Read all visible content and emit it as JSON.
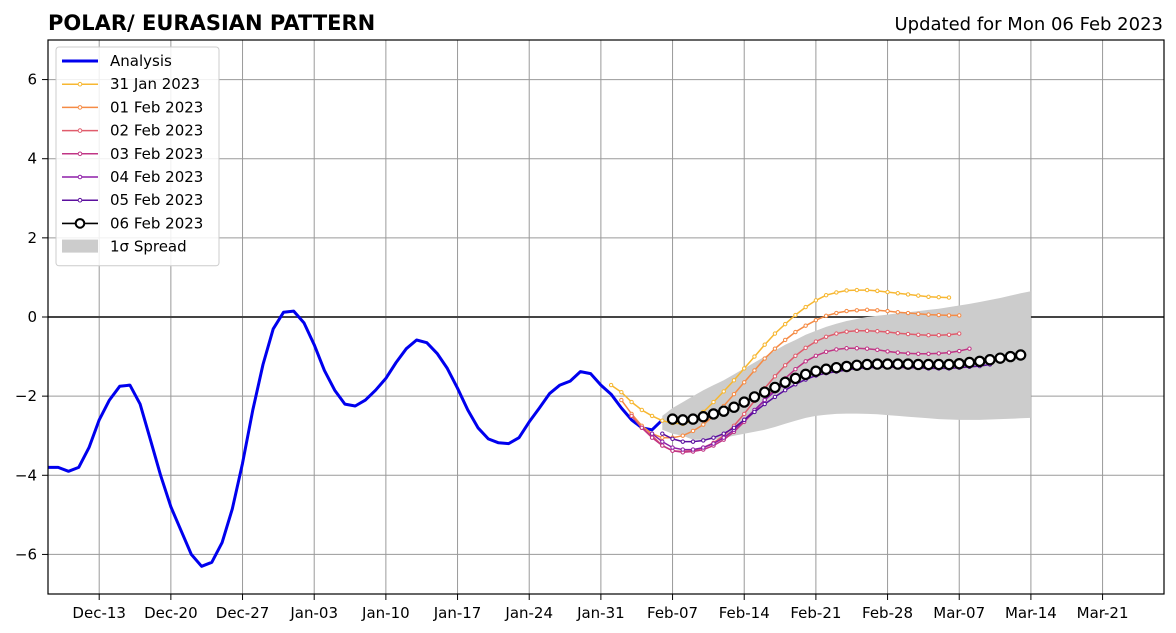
{
  "chart_data": {
    "type": "line",
    "title": "POLAR/ EURASIAN  PATTERN",
    "subtitle": "Updated for Mon 06 Feb 2023",
    "xlabel": "",
    "ylabel": "",
    "x_unit": "days",
    "x_ticks": [
      {
        "label": "Dec-13",
        "x": "2022-12-13"
      },
      {
        "label": "Dec-20",
        "x": "2022-12-20"
      },
      {
        "label": "Dec-27",
        "x": "2022-12-27"
      },
      {
        "label": "Jan-03",
        "x": "2023-01-03"
      },
      {
        "label": "Jan-10",
        "x": "2023-01-10"
      },
      {
        "label": "Jan-17",
        "x": "2023-01-17"
      },
      {
        "label": "Jan-24",
        "x": "2023-01-24"
      },
      {
        "label": "Jan-31",
        "x": "2023-01-31"
      },
      {
        "label": "Feb-07",
        "x": "2023-02-07"
      },
      {
        "label": "Feb-14",
        "x": "2023-02-14"
      },
      {
        "label": "Feb-21",
        "x": "2023-02-21"
      },
      {
        "label": "Feb-28",
        "x": "2023-02-28"
      },
      {
        "label": "Mar-07",
        "x": "2023-03-07"
      },
      {
        "label": "Mar-14",
        "x": "2023-03-14"
      },
      {
        "label": "Mar-21",
        "x": "2023-03-21"
      }
    ],
    "xlim": [
      "2022-12-08",
      "2023-03-27"
    ],
    "ylim": [
      -7,
      7
    ],
    "y_ticks": [
      {
        "label": "−6",
        "v": -6
      },
      {
        "label": "−4",
        "v": -4
      },
      {
        "label": "−2",
        "v": -2
      },
      {
        "label": "0",
        "v": 0
      },
      {
        "label": "2",
        "v": 2
      },
      {
        "label": "4",
        "v": 4
      },
      {
        "label": "6",
        "v": 6
      }
    ],
    "grid": true,
    "legend_position": "top-left",
    "series": [
      {
        "name": "Analysis",
        "color": "#0000ee",
        "style": "thick-line",
        "start": "2022-12-08",
        "values": [
          -3.8,
          -3.8,
          -3.9,
          -3.8,
          -3.3,
          -2.6,
          -2.1,
          -1.75,
          -1.72,
          -2.2,
          -3.1,
          -4.0,
          -4.8,
          -5.4,
          -6.0,
          -6.3,
          -6.2,
          -5.7,
          -4.85,
          -3.7,
          -2.35,
          -1.2,
          -0.3,
          0.12,
          0.15,
          -0.15,
          -0.7,
          -1.35,
          -1.85,
          -2.2,
          -2.25,
          -2.1,
          -1.85,
          -1.55,
          -1.15,
          -0.8,
          -0.58,
          -0.65,
          -0.92,
          -1.3,
          -1.8,
          -2.35,
          -2.8,
          -3.08,
          -3.18,
          -3.2,
          -3.05,
          -2.65,
          -2.3,
          -1.93,
          -1.72,
          -1.62,
          -1.38,
          -1.43,
          -1.72,
          -1.95,
          -2.3,
          -2.6,
          -2.8,
          -2.85,
          -2.6
        ]
      },
      {
        "name": "31 Jan 2023",
        "color": "#f7b731",
        "start": "2023-02-01",
        "values": [
          -1.72,
          -1.9,
          -2.15,
          -2.35,
          -2.5,
          -2.62,
          -2.68,
          -2.7,
          -2.62,
          -2.4,
          -2.15,
          -1.88,
          -1.6,
          -1.3,
          -1.0,
          -0.7,
          -0.42,
          -0.18,
          0.05,
          0.25,
          0.42,
          0.55,
          0.62,
          0.67,
          0.68,
          0.68,
          0.66,
          0.63,
          0.6,
          0.57,
          0.54,
          0.51,
          0.5,
          0.49
        ]
      },
      {
        "name": "01 Feb 2023",
        "color": "#f58b45",
        "start": "2023-02-02",
        "values": [
          -2.1,
          -2.45,
          -2.75,
          -2.95,
          -3.05,
          -3.05,
          -3.0,
          -2.88,
          -2.72,
          -2.5,
          -2.25,
          -1.95,
          -1.65,
          -1.35,
          -1.05,
          -0.8,
          -0.58,
          -0.38,
          -0.22,
          -0.08,
          0.03,
          0.1,
          0.15,
          0.17,
          0.18,
          0.17,
          0.15,
          0.12,
          0.1,
          0.08,
          0.06,
          0.05,
          0.04,
          0.04
        ]
      },
      {
        "name": "02 Feb 2023",
        "color": "#e05c6c",
        "start": "2023-02-03",
        "values": [
          -2.5,
          -2.8,
          -3.0,
          -3.25,
          -3.38,
          -3.4,
          -3.38,
          -3.3,
          -3.18,
          -3.0,
          -2.75,
          -2.45,
          -2.12,
          -1.8,
          -1.5,
          -1.22,
          -0.98,
          -0.78,
          -0.62,
          -0.5,
          -0.42,
          -0.37,
          -0.35,
          -0.35,
          -0.36,
          -0.38,
          -0.41,
          -0.43,
          -0.45,
          -0.46,
          -0.46,
          -0.45,
          -0.42
        ]
      },
      {
        "name": "03 Feb 2023",
        "color": "#c03585",
        "start": "2023-02-04",
        "values": [
          -2.8,
          -3.05,
          -3.25,
          -3.38,
          -3.42,
          -3.4,
          -3.35,
          -3.25,
          -3.1,
          -2.9,
          -2.65,
          -2.38,
          -2.1,
          -1.82,
          -1.55,
          -1.32,
          -1.12,
          -0.98,
          -0.88,
          -0.82,
          -0.79,
          -0.79,
          -0.8,
          -0.83,
          -0.87,
          -0.9,
          -0.92,
          -0.93,
          -0.93,
          -0.92,
          -0.9,
          -0.86,
          -0.8
        ]
      },
      {
        "name": "04 Feb 2023",
        "color": "#8e1fa8",
        "start": "2023-02-05",
        "values": [
          -2.95,
          -3.15,
          -3.3,
          -3.35,
          -3.35,
          -3.3,
          -3.2,
          -3.05,
          -2.85,
          -2.6,
          -2.35,
          -2.1,
          -1.88,
          -1.68,
          -1.52,
          -1.42,
          -1.35,
          -1.3,
          -1.27,
          -1.25,
          -1.24,
          -1.24,
          -1.25,
          -1.26,
          -1.27,
          -1.28,
          -1.28,
          -1.27,
          -1.25,
          -1.22,
          -1.2,
          -1.18,
          -1.15
        ]
      },
      {
        "name": "05 Feb 2023",
        "color": "#5b0f9e",
        "start": "2023-02-06",
        "values": [
          -2.95,
          -3.08,
          -3.15,
          -3.15,
          -3.12,
          -3.05,
          -2.95,
          -2.8,
          -2.6,
          -2.4,
          -2.2,
          -2.02,
          -1.85,
          -1.7,
          -1.58,
          -1.48,
          -1.42,
          -1.38,
          -1.34,
          -1.3,
          -1.28,
          -1.27,
          -1.26,
          -1.26,
          -1.27,
          -1.28,
          -1.3,
          -1.3,
          -1.3,
          -1.28,
          -1.26,
          -1.24,
          -1.2
        ]
      },
      {
        "name": "06 Feb 2023",
        "color": "#000000",
        "style": "open-circles",
        "start": "2023-02-07",
        "values": [
          -2.58,
          -2.6,
          -2.58,
          -2.52,
          -2.45,
          -2.38,
          -2.28,
          -2.15,
          -2.02,
          -1.9,
          -1.78,
          -1.65,
          -1.55,
          -1.45,
          -1.37,
          -1.32,
          -1.28,
          -1.25,
          -1.22,
          -1.2,
          -1.19,
          -1.19,
          -1.19,
          -1.19,
          -1.2,
          -1.2,
          -1.2,
          -1.2,
          -1.18,
          -1.15,
          -1.12,
          -1.08,
          -1.04,
          -1.0,
          -0.96
        ]
      }
    ],
    "spread": {
      "name": "1σ Spread",
      "color": "#cccccc",
      "start": "2023-02-06",
      "upper": [
        -2.5,
        -2.3,
        -2.15,
        -2.0,
        -1.85,
        -1.72,
        -1.6,
        -1.45,
        -1.3,
        -1.15,
        -1.0,
        -0.85,
        -0.7,
        -0.58,
        -0.45,
        -0.35,
        -0.25,
        -0.17,
        -0.1,
        -0.05,
        0.0,
        0.03,
        0.06,
        0.09,
        0.12,
        0.15,
        0.18,
        0.21,
        0.25,
        0.29,
        0.33,
        0.38,
        0.43,
        0.48,
        0.54,
        0.6,
        0.65
      ],
      "lower": [
        -2.85,
        -2.95,
        -3.0,
        -3.1,
        -3.1,
        -3.1,
        -3.05,
        -3.0,
        -2.95,
        -2.9,
        -2.85,
        -2.78,
        -2.7,
        -2.62,
        -2.55,
        -2.5,
        -2.47,
        -2.45,
        -2.44,
        -2.44,
        -2.45,
        -2.46,
        -2.48,
        -2.5,
        -2.52,
        -2.54,
        -2.56,
        -2.58,
        -2.59,
        -2.6,
        -2.6,
        -2.6,
        -2.59,
        -2.58,
        -2.57,
        -2.56,
        -2.55
      ]
    }
  }
}
